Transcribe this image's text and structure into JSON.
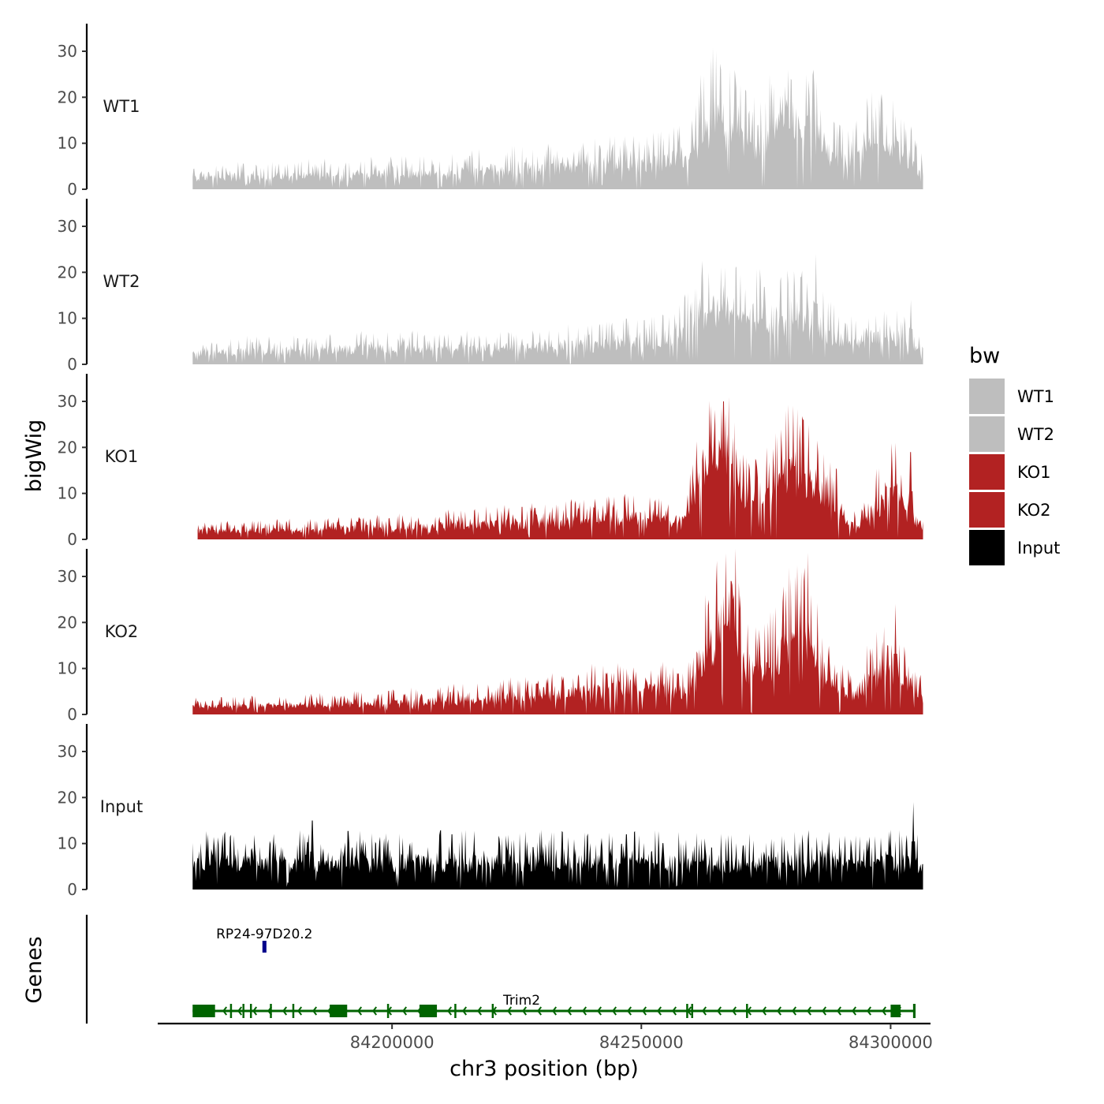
{
  "chart_data": {
    "type": "area",
    "y_axis_label": "bigWig",
    "x_axis_label": "chr3 position (bp)",
    "x_range": [
      84153000,
      84308000
    ],
    "x_ticks": [
      84200000,
      84250000,
      84300000
    ],
    "x_tick_labels": [
      "84200000",
      "84250000",
      "84300000"
    ],
    "y_range": [
      0,
      36
    ],
    "y_ticks": [
      0,
      10,
      20,
      30
    ],
    "y_tick_labels": [
      "0",
      "10",
      "20",
      "30"
    ],
    "track_start": 84160000,
    "track_end": 84306500,
    "legend": {
      "title": "bw",
      "entries": [
        {
          "label": "WT1",
          "color": "#bebebe"
        },
        {
          "label": "WT2",
          "color": "#bebebe"
        },
        {
          "label": "KO1",
          "color": "#b22222"
        },
        {
          "label": "KO2",
          "color": "#b22222"
        },
        {
          "label": "Input",
          "color": "#000000"
        }
      ]
    },
    "series": [
      {
        "name": "WT1",
        "color": "#bebebe",
        "baseline": 2,
        "profile": [
          [
            84160000,
            3
          ],
          [
            84200000,
            4
          ],
          [
            84210000,
            4
          ],
          [
            84220000,
            5
          ],
          [
            84240000,
            6
          ],
          [
            84255000,
            7
          ],
          [
            84260000,
            9
          ],
          [
            84262000,
            14
          ],
          [
            84265000,
            18
          ],
          [
            84268000,
            15
          ],
          [
            84272000,
            12
          ],
          [
            84276000,
            15
          ],
          [
            84280000,
            17
          ],
          [
            84284000,
            16
          ],
          [
            84288000,
            9
          ],
          [
            84292000,
            7
          ],
          [
            84296000,
            12
          ],
          [
            84300000,
            11
          ],
          [
            84303000,
            9
          ],
          [
            84306500,
            4
          ]
        ],
        "peaks": [
          [
            84266000,
            26
          ],
          [
            84269000,
            22
          ],
          [
            84276000,
            23
          ],
          [
            84280000,
            24
          ],
          [
            84283000,
            25
          ],
          [
            84284500,
            26
          ],
          [
            84297000,
            18
          ],
          [
            84301000,
            16
          ]
        ]
      },
      {
        "name": "WT2",
        "color": "#bebebe",
        "baseline": 1.5,
        "profile": [
          [
            84160000,
            3
          ],
          [
            84190000,
            4
          ],
          [
            84220000,
            4
          ],
          [
            84240000,
            5
          ],
          [
            84255000,
            6
          ],
          [
            84260000,
            9
          ],
          [
            84262000,
            14
          ],
          [
            84265000,
            14
          ],
          [
            84268000,
            12
          ],
          [
            84272000,
            11
          ],
          [
            84276000,
            12
          ],
          [
            84280000,
            12
          ],
          [
            84284000,
            11
          ],
          [
            84288000,
            8
          ],
          [
            84292000,
            6
          ],
          [
            84296000,
            7
          ],
          [
            84300000,
            7
          ],
          [
            84303000,
            6
          ],
          [
            84306500,
            3
          ]
        ],
        "peaks": [
          [
            84263500,
            20
          ],
          [
            84266000,
            21
          ],
          [
            84274000,
            18
          ],
          [
            84278000,
            19
          ],
          [
            84282000,
            19
          ],
          [
            84285000,
            24
          ],
          [
            84304000,
            14
          ]
        ]
      },
      {
        "name": "KO1",
        "color": "#b22222",
        "baseline": 2,
        "profile": [
          [
            84161000,
            2
          ],
          [
            84200000,
            3
          ],
          [
            84220000,
            4
          ],
          [
            84240000,
            5
          ],
          [
            84252000,
            6
          ],
          [
            84257000,
            4
          ],
          [
            84259000,
            6
          ],
          [
            84261000,
            14
          ],
          [
            84263000,
            20
          ],
          [
            84267000,
            19
          ],
          [
            84270000,
            13
          ],
          [
            84273000,
            11
          ],
          [
            84276000,
            13
          ],
          [
            84280000,
            17
          ],
          [
            84283000,
            14
          ],
          [
            84286000,
            11
          ],
          [
            84289000,
            9
          ],
          [
            84292000,
            4
          ],
          [
            84295000,
            5
          ],
          [
            84298000,
            10
          ],
          [
            84301000,
            12
          ],
          [
            84303000,
            8
          ],
          [
            84306500,
            3
          ]
        ],
        "peaks": [
          [
            84264000,
            29
          ],
          [
            84266500,
            30
          ],
          [
            84280500,
            29
          ],
          [
            84282500,
            26
          ],
          [
            84301000,
            21
          ],
          [
            84304000,
            19
          ]
        ]
      },
      {
        "name": "KO2",
        "color": "#b22222",
        "baseline": 1.5,
        "profile": [
          [
            84160000,
            2
          ],
          [
            84200000,
            3
          ],
          [
            84220000,
            4
          ],
          [
            84240000,
            6
          ],
          [
            84255000,
            7
          ],
          [
            84258000,
            5
          ],
          [
            84260000,
            7
          ],
          [
            84262000,
            12
          ],
          [
            84265000,
            20
          ],
          [
            84267000,
            30
          ],
          [
            84269000,
            20
          ],
          [
            84271000,
            12
          ],
          [
            84274000,
            11
          ],
          [
            84277000,
            14
          ],
          [
            84280000,
            18
          ],
          [
            84283000,
            20
          ],
          [
            84285000,
            15
          ],
          [
            84288000,
            9
          ],
          [
            84292000,
            5
          ],
          [
            84296000,
            9
          ],
          [
            84300000,
            12
          ],
          [
            84303000,
            9
          ],
          [
            84306500,
            4
          ]
        ],
        "peaks": [
          [
            84267000,
            35
          ],
          [
            84268000,
            29
          ],
          [
            84273000,
            19
          ],
          [
            84279000,
            27
          ],
          [
            84281000,
            30
          ],
          [
            84284000,
            26
          ],
          [
            84301000,
            24
          ]
        ]
      },
      {
        "name": "Input",
        "color": "#000000",
        "baseline": 2,
        "profile": [
          [
            84160000,
            7
          ],
          [
            84306500,
            7
          ]
        ],
        "peaks": [
          [
            84166000,
            12
          ],
          [
            84184000,
            15
          ],
          [
            84212000,
            12
          ],
          [
            84230000,
            13
          ],
          [
            84247000,
            12
          ],
          [
            84262000,
            11
          ],
          [
            84276000,
            11
          ],
          [
            84300000,
            13
          ],
          [
            84304500,
            19
          ]
        ]
      }
    ],
    "genes_track_label": "Genes",
    "genes": [
      {
        "name": "RP24-97D20.2",
        "color": "#00008b",
        "start": 84174000,
        "end": 84174800,
        "strand": "+",
        "exons": [
          [
            84174000,
            84174800
          ]
        ]
      },
      {
        "name": "Trim2",
        "color": "#006400",
        "start": 84160000,
        "end": 84305000,
        "strand": "-",
        "exons": [
          [
            84160000,
            84164500
          ],
          [
            84167500,
            84167800
          ],
          [
            84170000,
            84170200
          ],
          [
            84171500,
            84171700
          ],
          [
            84175500,
            84175700
          ],
          [
            84180000,
            84180200
          ],
          [
            84187500,
            84191000
          ],
          [
            84199000,
            84199200
          ],
          [
            84205500,
            84209000
          ],
          [
            84212500,
            84212700
          ],
          [
            84220000,
            84220200
          ],
          [
            84259000,
            84259300
          ],
          [
            84260000,
            84260300
          ],
          [
            84271000,
            84271200
          ],
          [
            84300000,
            84302000
          ],
          [
            84304500,
            84305000
          ]
        ]
      }
    ]
  }
}
